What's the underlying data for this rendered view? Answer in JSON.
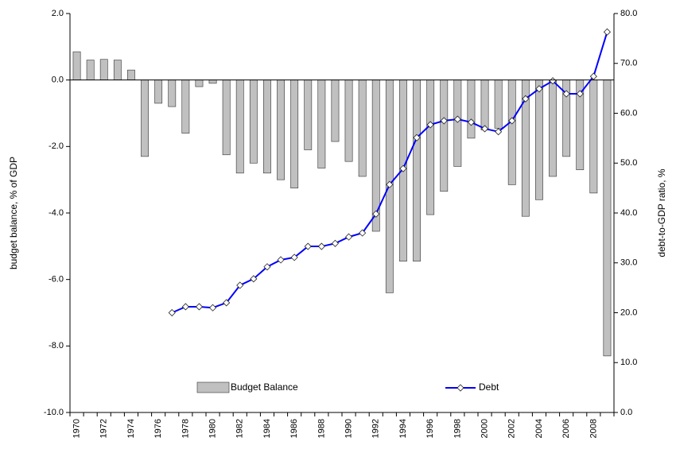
{
  "chart_data": {
    "type": "combo",
    "y_label": "budget balance, % of GDP",
    "y2_label": "debt-to-GDP ratio, %",
    "categories": [
      "1970",
      null,
      "1972",
      null,
      "1974",
      null,
      "1976",
      null,
      "1978",
      null,
      "1980",
      null,
      "1982",
      null,
      "1984",
      null,
      "1986",
      null,
      "1988",
      null,
      "1990",
      null,
      "1992",
      null,
      "1994",
      null,
      "1996",
      null,
      "1998",
      null,
      "2000",
      null,
      "2002",
      null,
      "2004",
      null,
      "2006",
      null,
      "2008",
      null
    ],
    "series": [
      {
        "name": "Budget Balance",
        "type": "bar",
        "color": "#c0c0c0",
        "axis": "y",
        "values": [
          0.85,
          0.6,
          0.62,
          0.6,
          0.3,
          -2.3,
          -0.7,
          -0.8,
          -1.6,
          -0.2,
          -0.1,
          -2.25,
          -2.8,
          -2.5,
          -2.8,
          -3.0,
          -3.25,
          -2.1,
          -2.65,
          -1.85,
          -2.45,
          -2.9,
          -4.55,
          -6.4,
          -5.45,
          -5.45,
          -4.05,
          -3.35,
          -2.6,
          -1.75,
          -1.5,
          -1.45,
          -3.15,
          -4.1,
          -3.6,
          -2.9,
          -2.3,
          -2.7,
          -3.4,
          -8.3
        ]
      },
      {
        "name": "Debt",
        "type": "line",
        "color": "#0000ff",
        "axis": "y2",
        "values": [
          null,
          null,
          null,
          null,
          null,
          null,
          null,
          20.0,
          21.2,
          21.2,
          21.0,
          22.0,
          25.5,
          26.8,
          29.2,
          30.6,
          31.1,
          33.3,
          33.3,
          33.9,
          35.2,
          36.0,
          39.8,
          45.7,
          48.9,
          55.1,
          57.7,
          58.5,
          58.8,
          58.2,
          56.9,
          56.3,
          58.5,
          62.9,
          64.9,
          66.5,
          63.9,
          63.9,
          67.4,
          76.3
        ]
      }
    ],
    "ylim": [
      -10,
      2
    ],
    "yticks": [
      {
        "value": -10,
        "label": "-10.0"
      },
      {
        "value": -8,
        "label": "-8.0"
      },
      {
        "value": -6,
        "label": "-6.0"
      },
      {
        "value": -4,
        "label": "-4.0"
      },
      {
        "value": -2,
        "label": "-2.0"
      },
      {
        "value": 0,
        "label": "0.0"
      },
      {
        "value": 2,
        "label": "2.0"
      }
    ],
    "y2lim": [
      0,
      80
    ],
    "y2ticks": [
      {
        "value": 0,
        "label": "0.0"
      },
      {
        "value": 10,
        "label": "10.0"
      },
      {
        "value": 20,
        "label": "20.0"
      },
      {
        "value": 30,
        "label": "30.0"
      },
      {
        "value": 40,
        "label": "40.0"
      },
      {
        "value": 50,
        "label": "50.0"
      },
      {
        "value": 60,
        "label": "60.0"
      },
      {
        "value": 70,
        "label": "70.0"
      },
      {
        "value": 80,
        "label": "80.0"
      }
    ],
    "legend": "lower center",
    "grid": false
  }
}
